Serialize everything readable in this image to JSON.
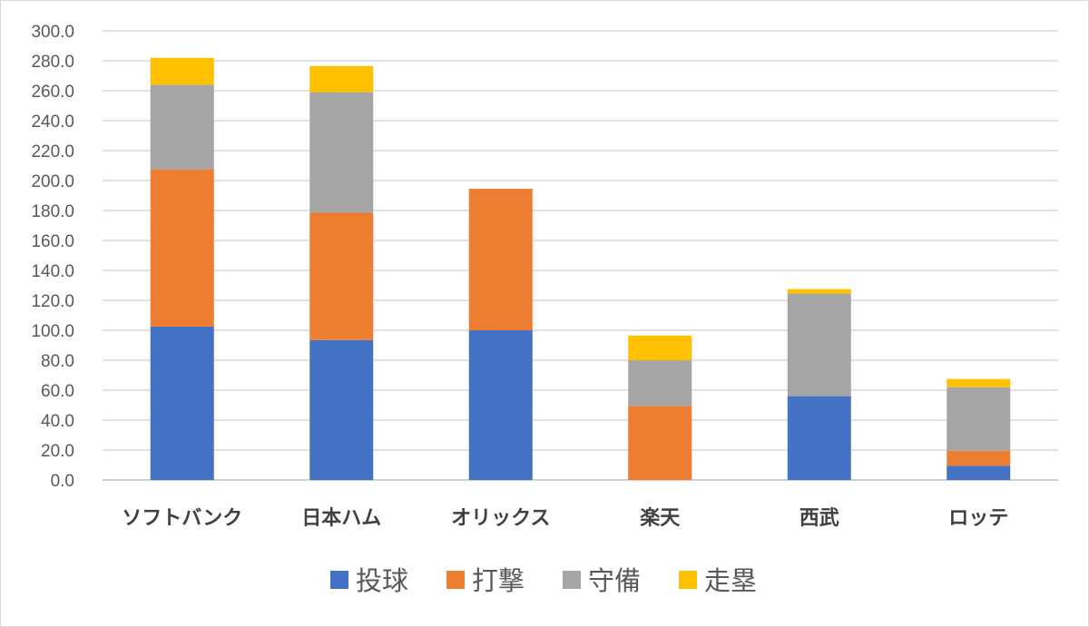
{
  "chart_data": {
    "type": "bar",
    "stacked": true,
    "categories": [
      "ソフトバンク",
      "日本ハム",
      "オリックス",
      "楽天",
      "西武",
      "ロッテ"
    ],
    "series": [
      {
        "name": "投球",
        "color": "#4472c4",
        "values": [
          102.5,
          93.5,
          100.0,
          0.0,
          56.0,
          9.5
        ]
      },
      {
        "name": "打撃",
        "color": "#ed7d31",
        "values": [
          105.0,
          85.0,
          94.5,
          49.5,
          0.0,
          10.0
        ]
      },
      {
        "name": "守備",
        "color": "#a5a5a5",
        "values": [
          56.5,
          80.5,
          0.0,
          30.5,
          68.5,
          42.5
        ]
      },
      {
        "name": "走塁",
        "color": "#ffc000",
        "values": [
          18.0,
          17.5,
          0.0,
          16.5,
          3.0,
          5.5
        ]
      }
    ],
    "ylim": [
      0,
      300
    ],
    "yticks": [
      "0.0",
      "20.0",
      "40.0",
      "60.0",
      "80.0",
      "100.0",
      "120.0",
      "140.0",
      "160.0",
      "180.0",
      "200.0",
      "220.0",
      "240.0",
      "260.0",
      "280.0",
      "300.0"
    ],
    "grid": true,
    "legend_position": "bottom"
  }
}
